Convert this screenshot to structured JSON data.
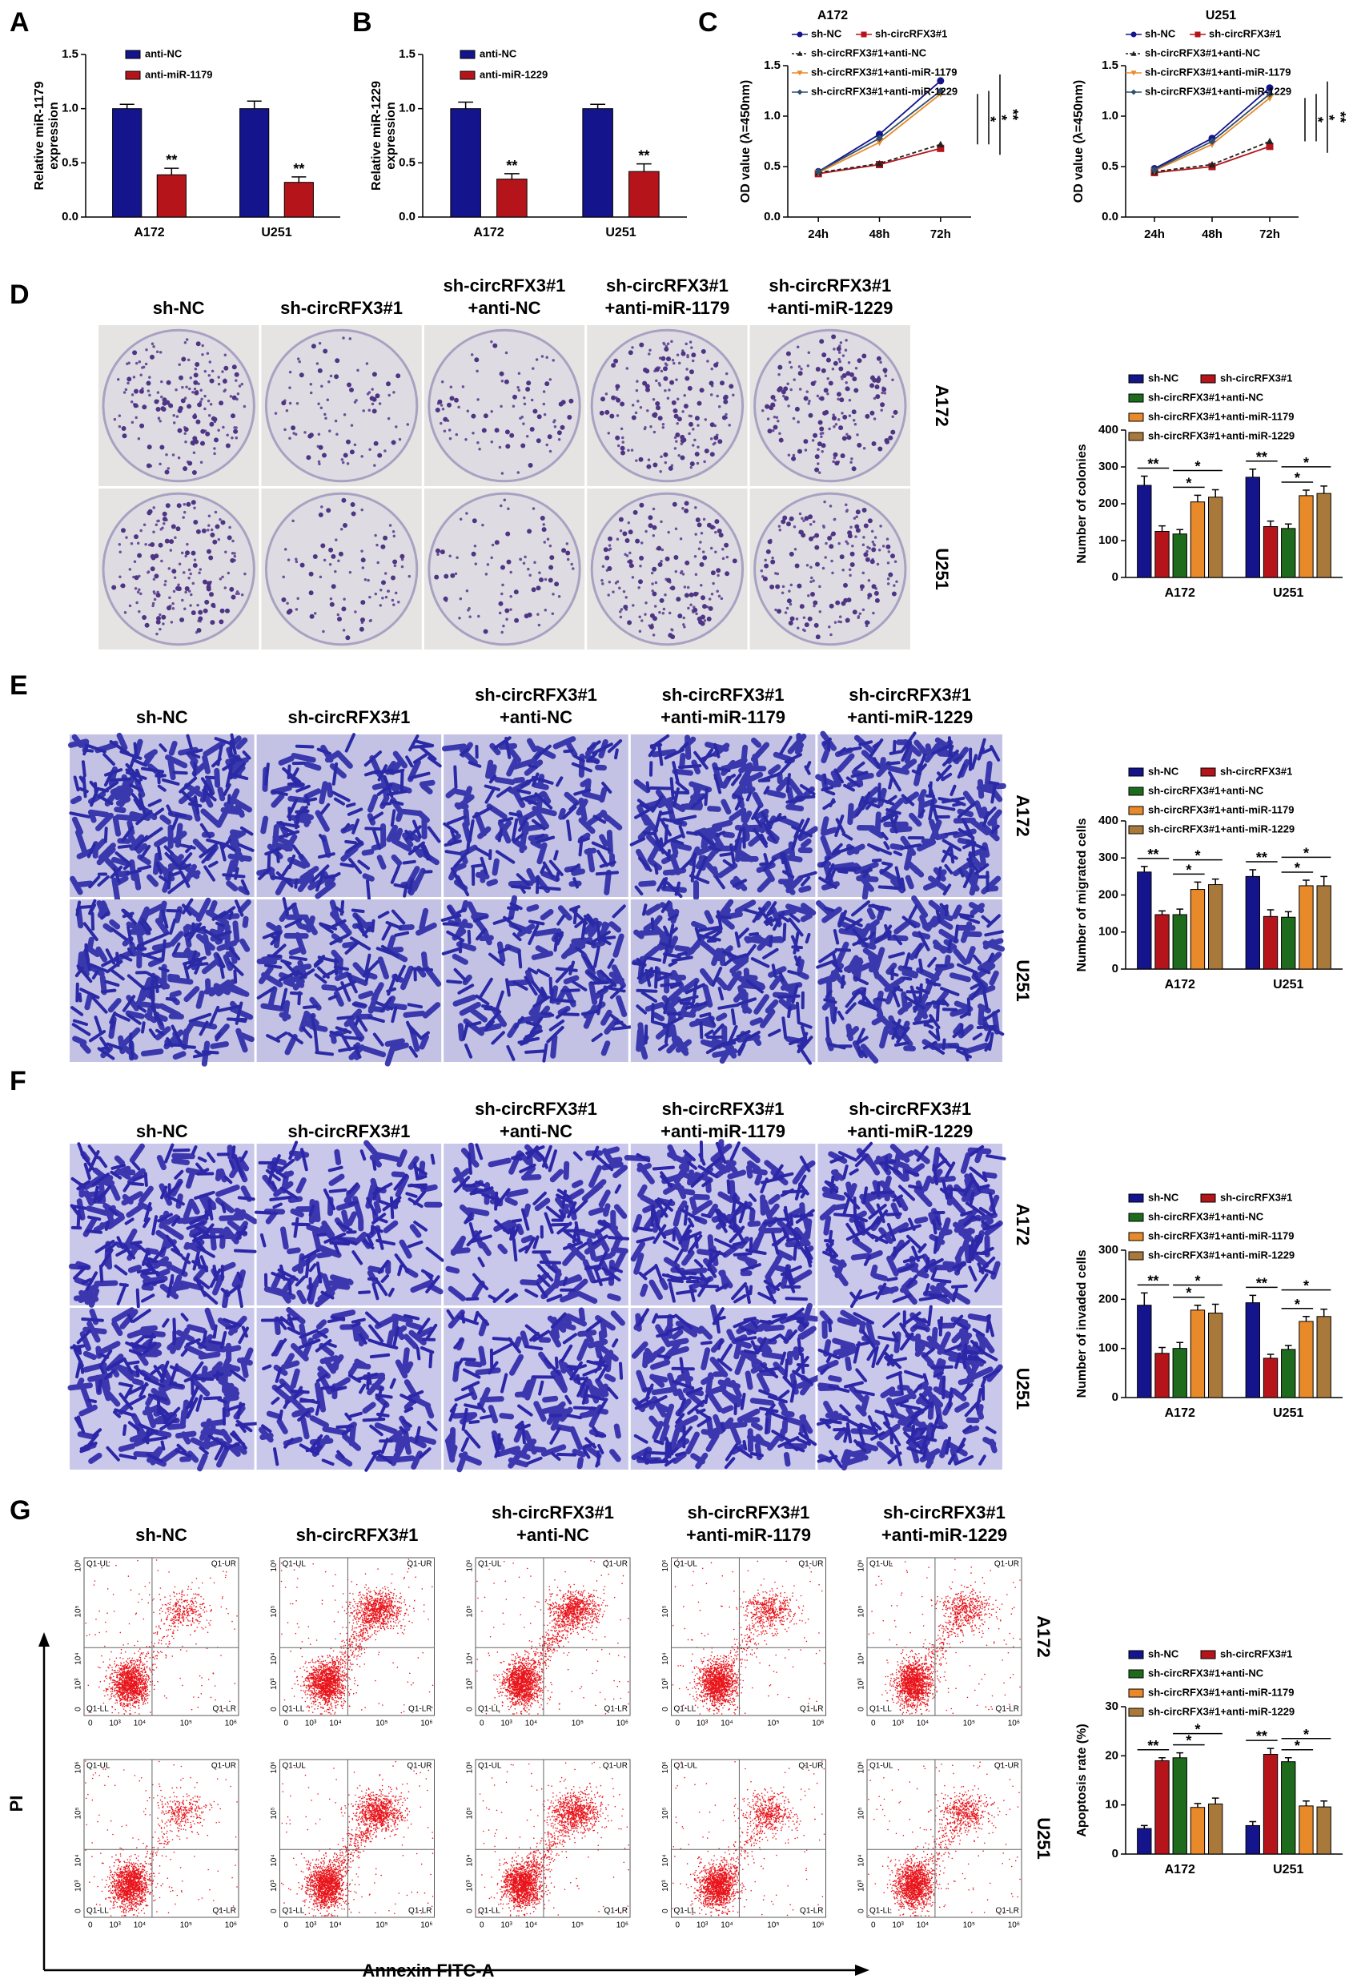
{
  "panel_labels": [
    "A",
    "B",
    "C",
    "D",
    "E",
    "F",
    "G"
  ],
  "chart_data": [
    {
      "type": "bar",
      "ylabel": [
        "Relative miR-1179",
        "expression"
      ],
      "categories": [
        "A172",
        "U251"
      ],
      "series": [
        {
          "name": "anti-NC",
          "color": "#14148c",
          "values": [
            1.0,
            1.0
          ],
          "errors": [
            0.04,
            0.07
          ]
        },
        {
          "name": "anti-miR-1179",
          "color": "#b5141a",
          "values": [
            0.39,
            0.32
          ],
          "errors": [
            0.06,
            0.05
          ]
        }
      ],
      "ylim": [
        0,
        1.5
      ],
      "yticks": [
        {
          "value": 0,
          "label": "0.0"
        },
        0.5,
        {
          "value": 1,
          "label": "1.0"
        },
        1.5
      ],
      "annotations": [
        {
          "label": "**",
          "category": 0,
          "series": [
            1
          ]
        },
        {
          "label": "**",
          "category": 1,
          "series": [
            1
          ]
        }
      ]
    },
    {
      "type": "bar",
      "ylabel": [
        "Relative miR-1229",
        "expression"
      ],
      "categories": [
        "A172",
        "U251"
      ],
      "series": [
        {
          "name": "anti-NC",
          "color": "#14148c",
          "values": [
            1.0,
            1.0
          ],
          "errors": [
            0.06,
            0.04
          ]
        },
        {
          "name": "anti-miR-1229",
          "color": "#b5141a",
          "values": [
            0.35,
            0.42
          ],
          "errors": [
            0.05,
            0.07
          ]
        }
      ],
      "ylim": [
        0,
        1.5
      ],
      "yticks": [
        {
          "value": 0,
          "label": "0.0"
        },
        0.5,
        {
          "value": 1,
          "label": "1.0"
        },
        1.5
      ],
      "annotations": [
        {
          "label": "**",
          "category": 0,
          "series": [
            1
          ]
        },
        {
          "label": "**",
          "category": 1,
          "series": [
            1
          ]
        }
      ]
    },
    {
      "type": "line",
      "title": "A172",
      "ylabel": "OD value (λ=450nm)",
      "categories": [
        "24h",
        "48h",
        "72h"
      ],
      "series": [
        {
          "name": "sh-NC",
          "color": "#14148c",
          "values": [
            0.45,
            0.82,
            1.35
          ]
        },
        {
          "name": "sh-circRFX3#1",
          "color": "#b5141a",
          "values": [
            0.43,
            0.52,
            0.68
          ]
        },
        {
          "name": "sh-circRFX3#1+anti-NC",
          "color": "#222222",
          "dashed": true,
          "values": [
            0.44,
            0.53,
            0.72
          ]
        },
        {
          "name": "sh-circRFX3#1+anti-miR-1179",
          "color": "#e8892a",
          "values": [
            0.44,
            0.74,
            1.22
          ]
        },
        {
          "name": "sh-circRFX3#1+anti-miR-1229",
          "color": "#2f4f6f",
          "values": [
            0.45,
            0.78,
            1.25
          ]
        }
      ],
      "ylim": [
        0,
        1.5
      ],
      "yticks": [
        {
          "value": 0,
          "label": "0.0"
        },
        0.5,
        {
          "value": 1,
          "label": "1.0"
        },
        1.5
      ],
      "annotations": [
        {
          "label": "*",
          "series": [
            3,
            2
          ]
        },
        {
          "label": "*",
          "series": [
            4,
            2
          ]
        },
        {
          "label": "**",
          "series": [
            0,
            1
          ]
        }
      ]
    },
    {
      "type": "line",
      "title": "U251",
      "ylabel": "OD value (λ=450nm)",
      "categories": [
        "24h",
        "48h",
        "72h"
      ],
      "series": [
        {
          "name": "sh-NC",
          "color": "#14148c",
          "values": [
            0.48,
            0.78,
            1.28
          ]
        },
        {
          "name": "sh-circRFX3#1",
          "color": "#b5141a",
          "values": [
            0.44,
            0.5,
            0.7
          ]
        },
        {
          "name": "sh-circRFX3#1+anti-NC",
          "color": "#222222",
          "dashed": true,
          "values": [
            0.45,
            0.52,
            0.75
          ]
        },
        {
          "name": "sh-circRFX3#1+anti-miR-1179",
          "color": "#e8892a",
          "values": [
            0.46,
            0.72,
            1.18
          ]
        },
        {
          "name": "sh-circRFX3#1+anti-miR-1229",
          "color": "#2f4f6f",
          "values": [
            0.47,
            0.75,
            1.22
          ]
        }
      ],
      "ylim": [
        0,
        1.5
      ],
      "yticks": [
        {
          "value": 0,
          "label": "0.0"
        },
        0.5,
        {
          "value": 1,
          "label": "1.0"
        },
        1.5
      ],
      "annotations": [
        {
          "label": "*",
          "series": [
            3,
            2
          ]
        },
        {
          "label": "*",
          "series": [
            4,
            2
          ]
        },
        {
          "label": "**",
          "series": [
            0,
            1
          ]
        }
      ]
    },
    {
      "type": "bar",
      "ylabel": "Number of colonies",
      "categories": [
        "A172",
        "U251"
      ],
      "series": [
        {
          "name": "sh-NC",
          "color": "#14148c",
          "values": [
            250,
            272
          ],
          "errors": [
            25,
            22
          ]
        },
        {
          "name": "sh-circRFX3#1",
          "color": "#b5141a",
          "values": [
            125,
            138
          ],
          "errors": [
            15,
            15
          ]
        },
        {
          "name": "sh-circRFX3#1+anti-NC",
          "color": "#1e6b1e",
          "values": [
            118,
            133
          ],
          "errors": [
            12,
            12
          ]
        },
        {
          "name": "sh-circRFX3#1+anti-miR-1179",
          "color": "#e8892a",
          "values": [
            205,
            222
          ],
          "errors": [
            18,
            15
          ]
        },
        {
          "name": "sh-circRFX3#1+anti-miR-1229",
          "color": "#a8793a",
          "values": [
            218,
            228
          ],
          "errors": [
            20,
            20
          ]
        }
      ],
      "ylim": [
        0,
        400
      ],
      "yticks": [
        0,
        100,
        200,
        300,
        400
      ],
      "annotations": [
        {
          "label": "**",
          "category": 0,
          "series": [
            0,
            1
          ]
        },
        {
          "label": "*",
          "category": 0,
          "series": [
            2,
            3
          ]
        },
        {
          "label": "*",
          "category": 0,
          "series": [
            2,
            4
          ]
        },
        {
          "label": "**",
          "category": 1,
          "series": [
            0,
            1
          ]
        },
        {
          "label": "*",
          "category": 1,
          "series": [
            2,
            3
          ]
        },
        {
          "label": "*",
          "category": 1,
          "series": [
            2,
            4
          ]
        }
      ]
    },
    {
      "type": "bar",
      "ylabel": "Number of migrated cells",
      "categories": [
        "A172",
        "U251"
      ],
      "series": [
        {
          "name": "sh-NC",
          "color": "#14148c",
          "values": [
            262,
            250
          ],
          "errors": [
            15,
            18
          ]
        },
        {
          "name": "sh-circRFX3#1",
          "color": "#b5141a",
          "values": [
            147,
            142
          ],
          "errors": [
            10,
            18
          ]
        },
        {
          "name": "sh-circRFX3#1+anti-NC",
          "color": "#1e6b1e",
          "values": [
            147,
            140
          ],
          "errors": [
            15,
            15
          ]
        },
        {
          "name": "sh-circRFX3#1+anti-miR-1179",
          "color": "#e8892a",
          "values": [
            215,
            225
          ],
          "errors": [
            20,
            15
          ]
        },
        {
          "name": "sh-circRFX3#1+anti-miR-1229",
          "color": "#a8793a",
          "values": [
            228,
            225
          ],
          "errors": [
            15,
            25
          ]
        }
      ],
      "ylim": [
        0,
        400
      ],
      "yticks": [
        0,
        100,
        200,
        300,
        400
      ],
      "annotations": [
        {
          "label": "**",
          "category": 0,
          "series": [
            0,
            1
          ]
        },
        {
          "label": "*",
          "category": 0,
          "series": [
            2,
            3
          ]
        },
        {
          "label": "*",
          "category": 0,
          "series": [
            2,
            4
          ]
        },
        {
          "label": "**",
          "category": 1,
          "series": [
            0,
            1
          ]
        },
        {
          "label": "*",
          "category": 1,
          "series": [
            2,
            3
          ]
        },
        {
          "label": "*",
          "category": 1,
          "series": [
            2,
            4
          ]
        }
      ]
    },
    {
      "type": "bar",
      "ylabel": "Number of invaded cells",
      "categories": [
        "A172",
        "U251"
      ],
      "series": [
        {
          "name": "sh-NC",
          "color": "#14148c",
          "values": [
            188,
            193
          ],
          "errors": [
            25,
            15
          ]
        },
        {
          "name": "sh-circRFX3#1",
          "color": "#b5141a",
          "values": [
            90,
            80
          ],
          "errors": [
            12,
            8
          ]
        },
        {
          "name": "sh-circRFX3#1+anti-NC",
          "color": "#1e6b1e",
          "values": [
            100,
            98
          ],
          "errors": [
            12,
            8
          ]
        },
        {
          "name": "sh-circRFX3#1+anti-miR-1179",
          "color": "#e8892a",
          "values": [
            178,
            155
          ],
          "errors": [
            10,
            10
          ]
        },
        {
          "name": "sh-circRFX3#1+anti-miR-1229",
          "color": "#a8793a",
          "values": [
            172,
            165
          ],
          "errors": [
            18,
            15
          ]
        }
      ],
      "ylim": [
        0,
        300
      ],
      "yticks": [
        0,
        100,
        200,
        300
      ],
      "annotations": [
        {
          "label": "**",
          "category": 0,
          "series": [
            0,
            1
          ]
        },
        {
          "label": "*",
          "category": 0,
          "series": [
            2,
            3
          ]
        },
        {
          "label": "*",
          "category": 0,
          "series": [
            2,
            4
          ]
        },
        {
          "label": "**",
          "category": 1,
          "series": [
            0,
            1
          ]
        },
        {
          "label": "*",
          "category": 1,
          "series": [
            2,
            3
          ]
        },
        {
          "label": "*",
          "category": 1,
          "series": [
            2,
            4
          ]
        }
      ]
    },
    {
      "type": "bar",
      "ylabel": "Apoptosis rate (%)",
      "categories": [
        "A172",
        "U251"
      ],
      "series": [
        {
          "name": "sh-NC",
          "color": "#14148c",
          "values": [
            5.2,
            5.8
          ],
          "errors": [
            0.6,
            0.8
          ]
        },
        {
          "name": "sh-circRFX3#1",
          "color": "#b5141a",
          "values": [
            19.0,
            20.3
          ],
          "errors": [
            0.6,
            1.2
          ]
        },
        {
          "name": "sh-circRFX3#1+anti-NC",
          "color": "#1e6b1e",
          "values": [
            19.6,
            18.8
          ],
          "errors": [
            1.0,
            0.8
          ]
        },
        {
          "name": "sh-circRFX3#1+anti-miR-1179",
          "color": "#e8892a",
          "values": [
            9.5,
            9.8
          ],
          "errors": [
            0.8,
            1.0
          ]
        },
        {
          "name": "sh-circRFX3#1+anti-miR-1229",
          "color": "#a8793a",
          "values": [
            10.2,
            9.6
          ],
          "errors": [
            1.2,
            1.2
          ]
        }
      ],
      "ylim": [
        0,
        30
      ],
      "yticks": [
        0,
        10,
        20,
        30
      ],
      "annotations": [
        {
          "label": "**",
          "category": 0,
          "series": [
            0,
            1
          ]
        },
        {
          "label": "*",
          "category": 0,
          "series": [
            2,
            3
          ]
        },
        {
          "label": "*",
          "category": 0,
          "series": [
            2,
            4
          ]
        },
        {
          "label": "**",
          "category": 1,
          "series": [
            0,
            1
          ]
        },
        {
          "label": "*",
          "category": 1,
          "series": [
            2,
            3
          ]
        },
        {
          "label": "*",
          "category": 1,
          "series": [
            2,
            4
          ]
        }
      ]
    }
  ],
  "image_panels": [
    {
      "columns": [
        [
          "sh-NC"
        ],
        [
          "sh-circRFX3#1"
        ],
        [
          "sh-circRFX3#1",
          "+anti-NC"
        ],
        [
          "sh-circRFX3#1",
          "+anti-miR-1179"
        ],
        [
          "sh-circRFX3#1",
          "+anti-miR-1229"
        ]
      ],
      "rows": [
        "A172",
        "U251"
      ]
    },
    {
      "columns": [
        [
          "sh-NC"
        ],
        [
          "sh-circRFX3#1"
        ],
        [
          "sh-circRFX3#1",
          "+anti-NC"
        ],
        [
          "sh-circRFX3#1",
          "+anti-miR-1179"
        ],
        [
          "sh-circRFX3#1",
          "+anti-miR-1229"
        ]
      ],
      "rows": [
        "A172",
        "U251"
      ]
    },
    {
      "columns": [
        [
          "sh-NC"
        ],
        [
          "sh-circRFX3#1"
        ],
        [
          "sh-circRFX3#1",
          "+anti-NC"
        ],
        [
          "sh-circRFX3#1",
          "+anti-miR-1179"
        ],
        [
          "sh-circRFX3#1",
          "+anti-miR-1229"
        ]
      ],
      "rows": [
        "A172",
        "U251"
      ]
    }
  ],
  "flow": {
    "columns": [
      [
        "sh-NC"
      ],
      [
        "sh-circRFX3#1"
      ],
      [
        "sh-circRFX3#1",
        "+anti-NC"
      ],
      [
        "sh-circRFX3#1",
        "+anti-miR-1179"
      ],
      [
        "sh-circRFX3#1",
        "+anti-miR-1229"
      ]
    ],
    "rows": [
      "A172",
      "U251"
    ],
    "quadrants": [
      "Q1-UL",
      "Q1-UR",
      "Q1-LL",
      "Q1-LR"
    ],
    "ticks": [
      "0",
      "10³",
      "10⁴",
      "10⁵",
      "10⁶"
    ],
    "xlabel": "Annexin FITC-A",
    "ylabel": "PI"
  }
}
